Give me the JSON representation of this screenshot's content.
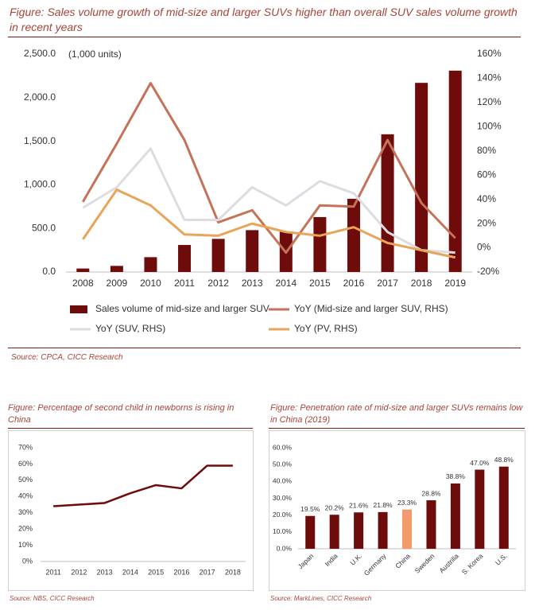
{
  "chart_data": [
    {
      "type": "combo",
      "title": "Figure: Sales volume growth of mid-size and larger SUVs higher than overall SUV sales volume growth in recent years",
      "annotation": "(1,000 units)",
      "source": "Source: CPCA, CICC Research",
      "categories": [
        "2008",
        "2009",
        "2010",
        "2011",
        "2012",
        "2013",
        "2014",
        "2015",
        "2016",
        "2017",
        "2018",
        "2019"
      ],
      "series": [
        {
          "name": "Sales volume of mid-size and larger SUV",
          "type": "bar",
          "color": "#6e0b0b",
          "values": [
            40,
            70,
            170,
            310,
            380,
            480,
            465,
            630,
            840,
            1580,
            2170,
            2310
          ]
        },
        {
          "name": "YoY (Mid-size and larger SUV, RHS)",
          "type": "line",
          "axis": "y2",
          "color": "#c47258",
          "values": [
            38,
            86,
            136,
            89,
            21,
            31,
            -4,
            35,
            34,
            89,
            37,
            8
          ]
        },
        {
          "name": "YoY (SUV, RHS)",
          "type": "line",
          "axis": "y2",
          "color": "#dcdce2",
          "values": [
            33,
            50,
            82,
            23,
            23,
            50,
            35,
            55,
            45,
            13,
            -2,
            -4
          ]
        },
        {
          "name": "YoY (PV, RHS)",
          "type": "line",
          "axis": "y2",
          "color": "#e8a55a",
          "values": [
            7,
            48,
            35,
            11,
            10,
            20,
            13,
            10,
            17,
            4,
            -2,
            -8
          ]
        }
      ],
      "ylim": [
        0,
        2500
      ],
      "yticks": [
        {
          "value": 0,
          "label": "0.0"
        },
        {
          "value": 500,
          "label": "500.0"
        },
        {
          "value": 1000,
          "label": "1,000.0"
        },
        {
          "value": 1500,
          "label": "1,500.0"
        },
        {
          "value": 2000,
          "label": "2,000.0"
        },
        {
          "value": 2500,
          "label": "2,500.0"
        }
      ],
      "y2lim": [
        -20,
        160
      ],
      "y2ticks": [
        {
          "value": -20,
          "label": "-20%"
        },
        {
          "value": 0,
          "label": "0%"
        },
        {
          "value": 20,
          "label": "20%"
        },
        {
          "value": 40,
          "label": "40%"
        },
        {
          "value": 60,
          "label": "60%"
        },
        {
          "value": 80,
          "label": "80%"
        },
        {
          "value": 100,
          "label": "100%"
        },
        {
          "value": 120,
          "label": "120%"
        },
        {
          "value": 140,
          "label": "140%"
        },
        {
          "value": 160,
          "label": "160%"
        }
      ],
      "legend": "bottom",
      "grid": false
    },
    {
      "type": "line",
      "title": "Figure: Percentage of second child in newborns is rising in China",
      "source": "Source: NBS, CICC Research",
      "categories": [
        "2011",
        "2012",
        "2013",
        "2014",
        "2015",
        "2016",
        "2017",
        "2018"
      ],
      "values": [
        34,
        35,
        36,
        42,
        47,
        45,
        59,
        59
      ],
      "color": "#6e0b0b",
      "ylim": [
        0,
        70
      ],
      "yticks": [
        {
          "value": 0,
          "label": "0%"
        },
        {
          "value": 10,
          "label": "10%"
        },
        {
          "value": 20,
          "label": "20%"
        },
        {
          "value": 30,
          "label": "30%"
        },
        {
          "value": 40,
          "label": "40%"
        },
        {
          "value": 50,
          "label": "50%"
        },
        {
          "value": 60,
          "label": "60%"
        },
        {
          "value": 70,
          "label": "70%"
        }
      ],
      "grid": false
    },
    {
      "type": "bar",
      "title": "Figure: Penetration rate of mid-size and larger SUVs remains low in China (2019)",
      "source": "Source: MarkLines, CICC Research",
      "categories": [
        "Japan",
        "India",
        "U.K.",
        "Germany",
        "China",
        "Sweden",
        "Austrilia",
        "S. Korea",
        "U.S."
      ],
      "values": [
        19.5,
        20.2,
        21.6,
        21.8,
        23.3,
        28.8,
        38.8,
        47.0,
        48.8
      ],
      "value_labels": [
        "19.5%",
        "20.2%",
        "21.6%",
        "21.8%",
        "23.3%",
        "28.8%",
        "38.8%",
        "47.0%",
        "48.8%"
      ],
      "colors": [
        "#6e0b0b",
        "#6e0b0b",
        "#6e0b0b",
        "#6e0b0b",
        "#f29a6a",
        "#6e0b0b",
        "#6e0b0b",
        "#6e0b0b",
        "#6e0b0b"
      ],
      "ylim": [
        0,
        60
      ],
      "yticks": [
        {
          "value": 0,
          "label": "0.0%"
        },
        {
          "value": 10,
          "label": "10.0%"
        },
        {
          "value": 20,
          "label": "20.0%"
        },
        {
          "value": 30,
          "label": "30.0%"
        },
        {
          "value": 40,
          "label": "40.0%"
        },
        {
          "value": 50,
          "label": "50.0%"
        },
        {
          "value": 60,
          "label": "60.0%"
        }
      ],
      "grid": false
    }
  ]
}
